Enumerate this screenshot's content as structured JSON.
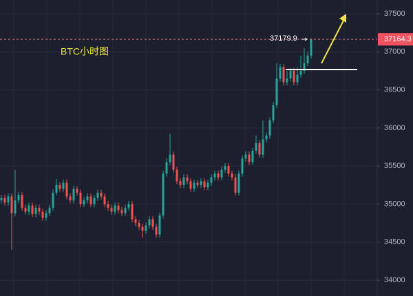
{
  "chart_data": {
    "type": "candlestick",
    "title": "BTC小时图",
    "open": [
      35050,
      35080,
      35020,
      35100,
      34880,
      35050,
      35120,
      34950,
      34900,
      34980,
      34870,
      34950,
      34900,
      34820,
      34880,
      34950,
      35150,
      35250,
      35200,
      35280,
      35100,
      35050,
      35200,
      35150,
      35000,
      35050,
      35100,
      35000,
      35080,
      35150,
      35100,
      35000,
      34950,
      34900,
      34980,
      34920,
      34880,
      34950,
      35000,
      34800,
      34750,
      34700,
      34650,
      34720,
      34800,
      34700,
      34600,
      34850,
      35400,
      35550,
      35650,
      35450,
      35300,
      35250,
      35350,
      35300,
      35200,
      35280,
      35250,
      35300,
      35220,
      35280,
      35350,
      35400,
      35350,
      35450,
      35500,
      35400,
      35350,
      35150,
      35400,
      35600,
      35650,
      35550,
      35700,
      35800,
      35650,
      35850,
      35900,
      36100,
      36300,
      36650,
      36800,
      36600,
      36650,
      36750,
      36600,
      36700,
      36750,
      36850,
      36950
    ],
    "high": [
      35120,
      35120,
      35140,
      35140,
      35450,
      35160,
      35160,
      34990,
      35020,
      35020,
      34990,
      34990,
      34940,
      34920,
      34990,
      35190,
      35330,
      35290,
      35320,
      35320,
      35140,
      35240,
      35240,
      35190,
      35090,
      35140,
      35140,
      35120,
      35190,
      35190,
      35140,
      35040,
      34990,
      35020,
      35020,
      34960,
      34990,
      35040,
      35040,
      34840,
      34790,
      34740,
      34760,
      34840,
      34840,
      34740,
      34890,
      35440,
      35600,
      35920,
      35690,
      35490,
      35340,
      35390,
      35390,
      35340,
      35320,
      35320,
      35340,
      35340,
      35320,
      35390,
      35440,
      35440,
      35490,
      35540,
      35540,
      35440,
      35390,
      35440,
      35640,
      35690,
      35690,
      35740,
      35900,
      35840,
      36100,
      35940,
      36140,
      36340,
      36850,
      36840,
      36840,
      36750,
      36790,
      36790,
      36800,
      36950,
      37050,
      37000,
      37179.9
    ],
    "low": [
      35010,
      34980,
      34980,
      34400,
      34840,
      35010,
      34910,
      34860,
      34860,
      34830,
      34830,
      34860,
      34780,
      34780,
      34840,
      34910,
      35110,
      35160,
      35160,
      35060,
      35010,
      35010,
      35110,
      34960,
      34960,
      35010,
      34960,
      34960,
      35040,
      35060,
      34960,
      34910,
      34860,
      34860,
      34880,
      34840,
      34840,
      34910,
      34760,
      34710,
      34660,
      34560,
      34610,
      34680,
      34660,
      34560,
      34560,
      34810,
      35360,
      35510,
      35410,
      35260,
      35210,
      35210,
      35260,
      35160,
      35160,
      35210,
      35210,
      35180,
      35180,
      35240,
      35310,
      35310,
      35310,
      35410,
      35360,
      35310,
      35110,
      35110,
      35360,
      35560,
      35510,
      35510,
      35660,
      35610,
      35610,
      35810,
      35860,
      36060,
      36260,
      36610,
      36560,
      36560,
      36610,
      36560,
      36560,
      36660,
      36710,
      36810,
      36910
    ],
    "close": [
      35080,
      35020,
      35100,
      34880,
      35050,
      35120,
      34950,
      34900,
      34980,
      34870,
      34950,
      34900,
      34820,
      34880,
      34950,
      35150,
      35250,
      35200,
      35280,
      35100,
      35050,
      35200,
      35150,
      35000,
      35050,
      35100,
      35000,
      35080,
      35150,
      35100,
      35000,
      34950,
      34900,
      34980,
      34920,
      34880,
      34950,
      35000,
      34800,
      34750,
      34700,
      34650,
      34720,
      34800,
      34700,
      34600,
      34850,
      35400,
      35550,
      35650,
      35450,
      35300,
      35250,
      35350,
      35300,
      35200,
      35280,
      35250,
      35300,
      35220,
      35280,
      35350,
      35400,
      35350,
      35450,
      35500,
      35400,
      35350,
      35150,
      35400,
      35600,
      35650,
      35550,
      35700,
      35800,
      35650,
      35850,
      35900,
      36100,
      36300,
      36650,
      36800,
      36600,
      36650,
      36750,
      36600,
      36700,
      36750,
      36850,
      36950,
      37164.3
    ],
    "up_color": "#26a69a",
    "down_color": "#ef5350",
    "ylim": [
      33792,
      37681
    ],
    "yticks": [
      34000,
      34500,
      35000,
      35500,
      36000,
      36500,
      37000,
      37500
    ],
    "grid": true
  }
}
